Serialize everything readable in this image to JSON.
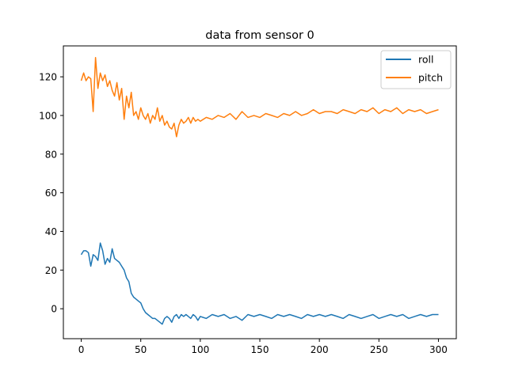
{
  "chart_data": {
    "type": "line",
    "title": "data from sensor 0",
    "xlabel": "",
    "ylabel": "",
    "xlim": [
      -15,
      315
    ],
    "ylim": [
      -15.5,
      136
    ],
    "xticks": [
      0,
      50,
      100,
      150,
      200,
      250,
      300
    ],
    "yticks": [
      0,
      20,
      40,
      60,
      80,
      100,
      120
    ],
    "grid": false,
    "legend_position": "top-right",
    "series": [
      {
        "name": "roll",
        "color": "#1f77b4",
        "x": [
          0,
          2,
          4,
          6,
          8,
          10,
          12,
          14,
          16,
          18,
          20,
          22,
          24,
          26,
          28,
          30,
          32,
          34,
          36,
          38,
          40,
          42,
          44,
          46,
          48,
          50,
          52,
          54,
          56,
          58,
          60,
          62,
          64,
          66,
          68,
          70,
          72,
          74,
          76,
          78,
          80,
          82,
          84,
          86,
          88,
          90,
          92,
          94,
          96,
          98,
          100,
          105,
          110,
          115,
          120,
          125,
          130,
          135,
          140,
          145,
          150,
          155,
          160,
          165,
          170,
          175,
          180,
          185,
          190,
          195,
          200,
          205,
          210,
          215,
          220,
          225,
          230,
          235,
          240,
          245,
          250,
          255,
          260,
          265,
          270,
          275,
          280,
          285,
          290,
          295,
          300
        ],
        "y": [
          28,
          30,
          30,
          29,
          22,
          28,
          27,
          25,
          34,
          30,
          23,
          26,
          24,
          31,
          26,
          25,
          24,
          22,
          20,
          16,
          14,
          8,
          6,
          5,
          4,
          3,
          0,
          -2,
          -3,
          -4,
          -5,
          -5,
          -6,
          -7,
          -8,
          -5,
          -4,
          -5,
          -7,
          -4,
          -3,
          -5,
          -3,
          -4,
          -3,
          -4,
          -5,
          -3,
          -4,
          -6,
          -4,
          -5,
          -3,
          -4,
          -3,
          -5,
          -4,
          -6,
          -3,
          -4,
          -3,
          -4,
          -5,
          -3,
          -4,
          -3,
          -4,
          -5,
          -3,
          -4,
          -3,
          -4,
          -3,
          -4,
          -5,
          -3,
          -4,
          -5,
          -4,
          -3,
          -5,
          -4,
          -3,
          -4,
          -3,
          -5,
          -4,
          -3,
          -4,
          -3,
          -3
        ]
      },
      {
        "name": "pitch",
        "color": "#ff7f0e",
        "x": [
          0,
          2,
          4,
          6,
          8,
          10,
          12,
          14,
          16,
          18,
          20,
          22,
          24,
          26,
          28,
          30,
          32,
          34,
          36,
          38,
          40,
          42,
          44,
          46,
          48,
          50,
          52,
          54,
          56,
          58,
          60,
          62,
          64,
          66,
          68,
          70,
          72,
          74,
          76,
          78,
          80,
          82,
          84,
          86,
          88,
          90,
          92,
          94,
          96,
          98,
          100,
          105,
          110,
          115,
          120,
          125,
          130,
          135,
          140,
          145,
          150,
          155,
          160,
          165,
          170,
          175,
          180,
          185,
          190,
          195,
          200,
          205,
          210,
          215,
          220,
          225,
          230,
          235,
          240,
          245,
          250,
          255,
          260,
          265,
          270,
          275,
          280,
          285,
          290,
          295,
          300
        ],
        "y": [
          118,
          122,
          118,
          120,
          119,
          102,
          130,
          114,
          122,
          118,
          121,
          115,
          118,
          113,
          110,
          117,
          108,
          114,
          98,
          110,
          104,
          112,
          100,
          102,
          98,
          104,
          100,
          98,
          101,
          96,
          100,
          98,
          104,
          97,
          100,
          95,
          97,
          94,
          93,
          96,
          89,
          95,
          98,
          96,
          97,
          99,
          96,
          99,
          97,
          98,
          97,
          99,
          98,
          100,
          99,
          101,
          98,
          102,
          99,
          100,
          99,
          101,
          100,
          99,
          101,
          100,
          102,
          100,
          101,
          103,
          101,
          102,
          102,
          101,
          103,
          102,
          101,
          103,
          102,
          104,
          101,
          103,
          102,
          104,
          101,
          103,
          102,
          103,
          101,
          102,
          103
        ]
      }
    ]
  }
}
